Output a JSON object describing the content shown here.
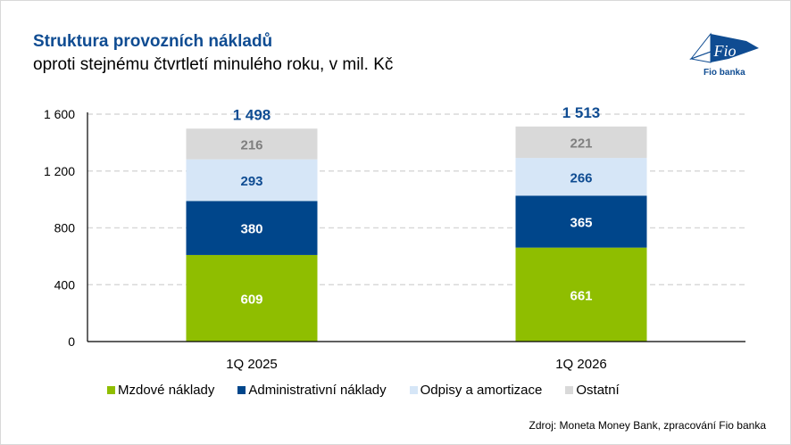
{
  "header": {
    "title": "Struktura provozních nákladů",
    "subtitle": "oproti stejnému čtvrtletí minulého roku, v mil. Kč"
  },
  "logo": {
    "mark_text": "Fio",
    "caption": "Fio banka",
    "icon": "fio-logo-icon"
  },
  "source": "Zdroj: Moneta Money Bank, zpracování Fio banka",
  "colors": {
    "title": "#0f4c92",
    "mzdove": "#8fbe00",
    "administrativni": "#00468b",
    "odpisy": "#d6e6f7",
    "ostatni": "#d9d9d9",
    "total_label": "#0f4c92",
    "ostatni_label": "#7f7f7f"
  },
  "chart_data": {
    "type": "bar",
    "stacked": true,
    "title": "Struktura provozních nákladů",
    "subtitle": "oproti stejnému čtvrtletí minulého roku, v mil. Kč",
    "xlabel": "",
    "ylabel": "",
    "ylim": [
      0,
      1600
    ],
    "yticks": [
      0,
      400,
      800,
      1200,
      1600
    ],
    "ytick_labels": [
      "0",
      "400",
      "800",
      "1 200",
      "1 600"
    ],
    "grid": true,
    "legend_position": "bottom",
    "categories": [
      "1Q 2025",
      "1Q 2026"
    ],
    "series": [
      {
        "name": "Mzdové náklady",
        "key": "mzdove",
        "values": [
          609,
          661
        ],
        "label_color": "#ffffff"
      },
      {
        "name": "Administrativní náklady",
        "key": "administrativni",
        "values": [
          380,
          365
        ],
        "label_color": "#ffffff"
      },
      {
        "name": "Odpisy a amortizace",
        "key": "odpisy",
        "values": [
          293,
          266
        ],
        "label_color": "#0f4c92"
      },
      {
        "name": "Ostatní",
        "key": "ostatni",
        "values": [
          216,
          221
        ],
        "label_color": "#7f7f7f"
      }
    ],
    "totals": [
      1498,
      1513
    ],
    "total_labels": [
      "1 498",
      "1 513"
    ]
  }
}
